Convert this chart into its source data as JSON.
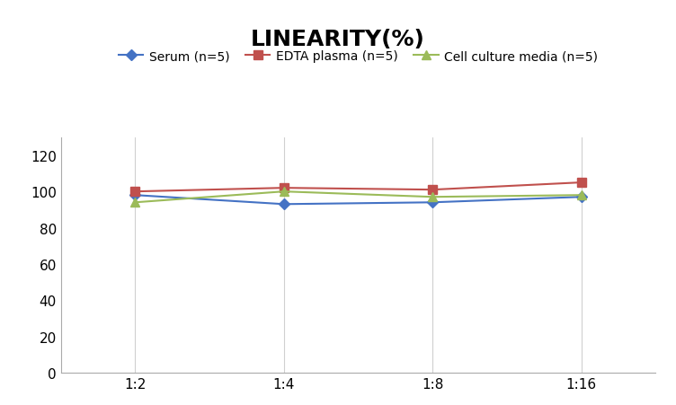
{
  "title": "LINEARITY(%)",
  "x_labels": [
    "1:2",
    "1:4",
    "1:8",
    "1:16"
  ],
  "x_positions": [
    0,
    1,
    2,
    3
  ],
  "series": [
    {
      "name": "Serum (n=5)",
      "values": [
        98,
        93,
        94,
        97
      ],
      "color": "#4472C4",
      "marker": "D",
      "markersize": 6
    },
    {
      "name": "EDTA plasma (n=5)",
      "values": [
        100,
        102,
        101,
        105
      ],
      "color": "#C0504D",
      "marker": "s",
      "markersize": 7
    },
    {
      "name": "Cell culture media (n=5)",
      "values": [
        94,
        100,
        97,
        98
      ],
      "color": "#9BBB59",
      "marker": "^",
      "markersize": 7
    }
  ],
  "ylim": [
    0,
    130
  ],
  "yticks": [
    0,
    20,
    40,
    60,
    80,
    100,
    120
  ],
  "background_color": "#FFFFFF",
  "grid_color": "#D0D0D0",
  "title_fontsize": 18,
  "legend_fontsize": 10,
  "tick_fontsize": 11
}
